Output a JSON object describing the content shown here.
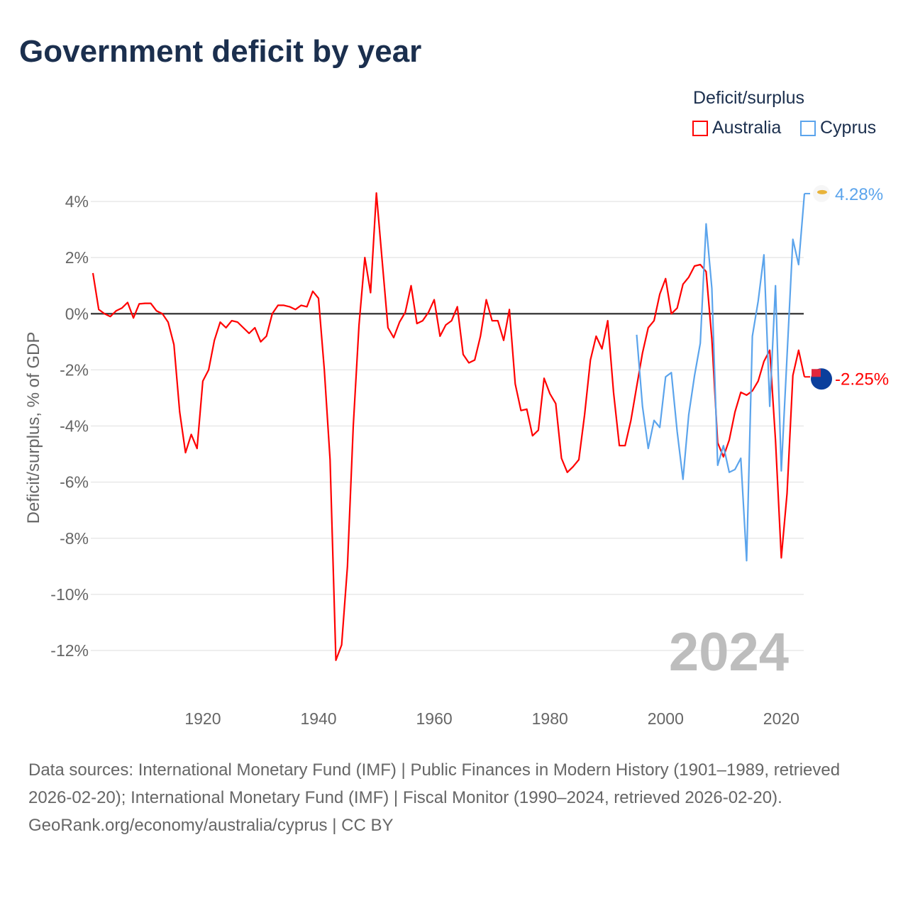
{
  "title": "Government deficit by year",
  "footer": {
    "sources": "Data sources: International Monetary Fund (IMF) | Public Finances in Modern History (1901–1989, retrieved 2026-02-20); International Monetary Fund (IMF) | Fiscal Monitor (1990–2024, retrieved 2026-02-20).",
    "credit": "GeoRank.org/economy/australia/cyprus | CC BY"
  },
  "chart_data": {
    "type": "line",
    "title": "Government deficit by year",
    "ylabel": "Deficit/surplus, % of GDP",
    "xlabel": "",
    "ylim": [
      -12,
      4
    ],
    "xlim": [
      1901,
      2024
    ],
    "yticks": [
      4,
      2,
      0,
      -2,
      -4,
      -6,
      -8,
      -10,
      -12
    ],
    "ytick_labels": [
      "4%",
      "2%",
      "0%",
      "-2%",
      "-4%",
      "-6%",
      "-8%",
      "-10%",
      "-12%"
    ],
    "xticks": [
      1920,
      1940,
      1960,
      1980,
      2000,
      2020
    ],
    "xtick_labels": [
      "1920",
      "1940",
      "1960",
      "1980",
      "2000",
      "2020"
    ],
    "year_watermark": "2024",
    "legend_title": "Deficit/surplus",
    "legend_position": "top-right",
    "grid": true,
    "series": [
      {
        "name": "Australia",
        "color": "#ff0000",
        "start_year": 1901,
        "end_label": "-2.25%",
        "values": [
          1.45,
          0.15,
          0.0,
          -0.1,
          0.1,
          0.2,
          0.4,
          -0.15,
          0.35,
          0.37,
          0.37,
          0.1,
          0.0,
          -0.3,
          -1.1,
          -3.5,
          -4.95,
          -4.3,
          -4.8,
          -2.4,
          -2.0,
          -0.95,
          -0.3,
          -0.5,
          -0.25,
          -0.3,
          -0.5,
          -0.7,
          -0.5,
          -1.0,
          -0.8,
          0.0,
          0.3,
          0.3,
          0.25,
          0.15,
          0.3,
          0.25,
          0.8,
          0.55,
          -2.0,
          -5.2,
          -12.35,
          -11.8,
          -9.0,
          -4.0,
          -0.4,
          2.0,
          0.75,
          4.3,
          1.9,
          -0.5,
          -0.85,
          -0.3,
          0.05,
          1.0,
          -0.35,
          -0.25,
          0.05,
          0.5,
          -0.8,
          -0.4,
          -0.25,
          0.25,
          -1.45,
          -1.75,
          -1.65,
          -0.8,
          0.5,
          -0.25,
          -0.25,
          -0.95,
          0.15,
          -2.5,
          -3.45,
          -3.4,
          -4.35,
          -4.15,
          -2.3,
          -2.85,
          -3.2,
          -5.15,
          -5.65,
          -5.45,
          -5.2,
          -3.6,
          -1.65,
          -0.8,
          -1.25,
          -0.25,
          -2.8,
          -4.7,
          -4.7,
          -3.8,
          -2.6,
          -1.4,
          -0.5,
          -0.25,
          0.7,
          1.25,
          0.0,
          0.2,
          1.05,
          1.3,
          1.7,
          1.75,
          1.5,
          -0.9,
          -4.6,
          -5.1,
          -4.5,
          -3.5,
          -2.8,
          -2.9,
          -2.75,
          -2.4,
          -1.7,
          -1.3,
          -4.5,
          -8.7,
          -6.4,
          -2.2,
          -1.3,
          -2.25
        ]
      },
      {
        "name": "Cyprus",
        "color": "#5ba4ec",
        "start_year": 1995,
        "end_label": "4.28%",
        "values": [
          -0.75,
          -3.3,
          -4.8,
          -3.8,
          -4.05,
          -2.25,
          -2.1,
          -4.2,
          -5.9,
          -3.6,
          -2.2,
          -1.05,
          3.2,
          0.9,
          -5.4,
          -4.7,
          -5.65,
          -5.55,
          -5.15,
          -8.8,
          -0.8,
          0.45,
          2.1,
          -3.3,
          1.0,
          -5.6,
          -1.5,
          2.65,
          1.75,
          4.28
        ]
      }
    ]
  }
}
